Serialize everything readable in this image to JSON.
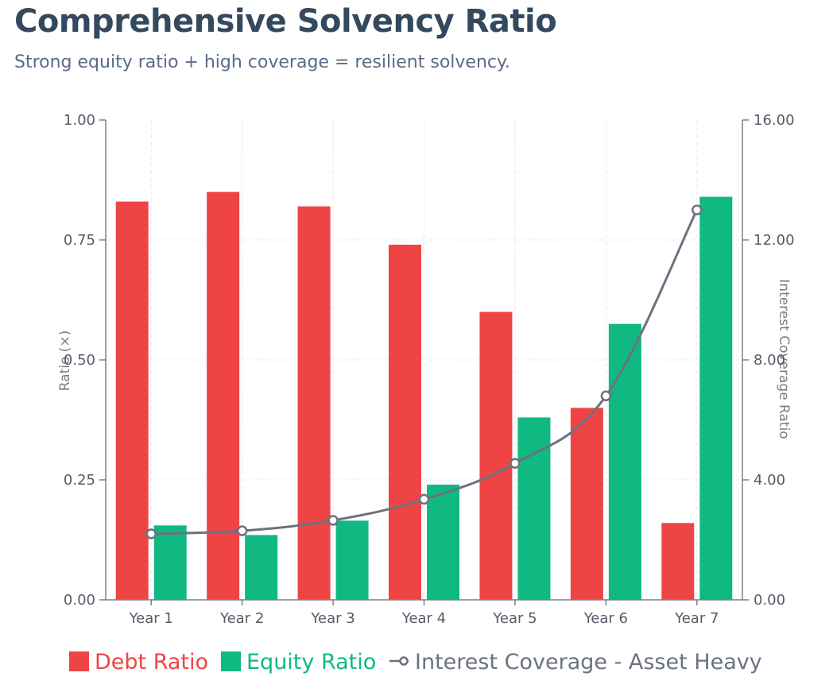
{
  "title": "Comprehensive Solvency Ratio",
  "subtitle": "Strong equity ratio + high coverage = resilient solvency.",
  "colors": {
    "debt": "#ef4444",
    "equity": "#10b981",
    "coverage": "#6b7280",
    "title": "#34495e",
    "subtitle": "#5a6b85"
  },
  "chart_data": {
    "type": "bar",
    "categories": [
      "Year 1",
      "Year 2",
      "Year 3",
      "Year 4",
      "Year 5",
      "Year 6",
      "Year 7"
    ],
    "series": [
      {
        "name": "Debt Ratio",
        "type": "bar",
        "axis": "left",
        "values": [
          0.83,
          0.85,
          0.82,
          0.74,
          0.6,
          0.4,
          0.16
        ]
      },
      {
        "name": "Equity Ratio",
        "type": "bar",
        "axis": "left",
        "values": [
          0.155,
          0.135,
          0.165,
          0.24,
          0.38,
          0.575,
          0.84
        ]
      },
      {
        "name": "Interest Coverage - Asset Heavy",
        "type": "line",
        "axis": "right",
        "values": [
          2.2,
          2.3,
          2.65,
          3.35,
          4.55,
          6.8,
          13.0
        ]
      }
    ],
    "y_left": {
      "label": "Ratio (×)",
      "range": [
        0,
        1
      ],
      "ticks": [
        "0.00",
        "0.25",
        "0.50",
        "0.75",
        "1.00"
      ]
    },
    "y_right": {
      "label": "Interest Coverage Ratio",
      "range": [
        0,
        16
      ],
      "ticks": [
        "0.00",
        "4.00",
        "8.00",
        "12.00",
        "16.00"
      ]
    },
    "grid": true,
    "legend_position": "bottom"
  }
}
